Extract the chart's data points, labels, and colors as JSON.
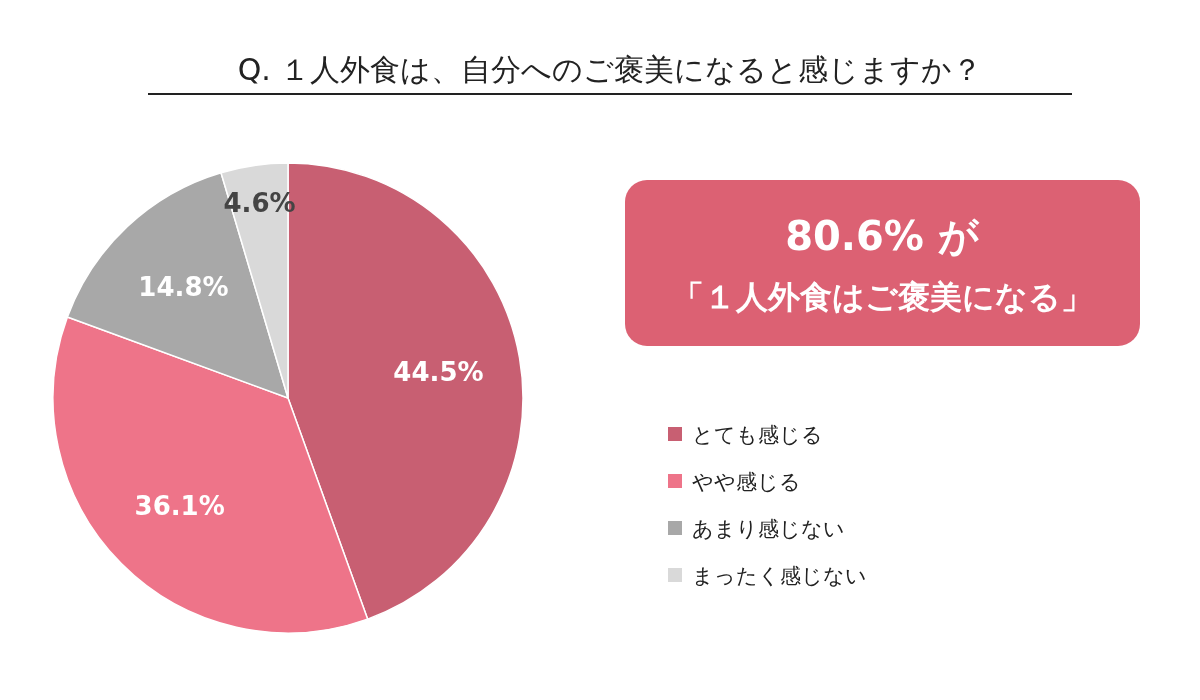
{
  "chart_data": {
    "type": "pie",
    "title": "Q. １人外食は、自分へのご褒美になると感じますか？",
    "categories": [
      "とても感じる",
      "やや感じる",
      "あまり感じない",
      "まったく感じない"
    ],
    "values": [
      44.5,
      36.1,
      14.8,
      4.6
    ],
    "colors": [
      "#c85f72",
      "#ee7489",
      "#a8a8a8",
      "#d9d9d9"
    ],
    "value_labels": [
      "44.5%",
      "36.1%",
      "14.8%",
      "4.6%"
    ],
    "legend": "right",
    "annotations": [
      "80.6% が",
      "「１人外食はご褒美になる」"
    ]
  }
}
